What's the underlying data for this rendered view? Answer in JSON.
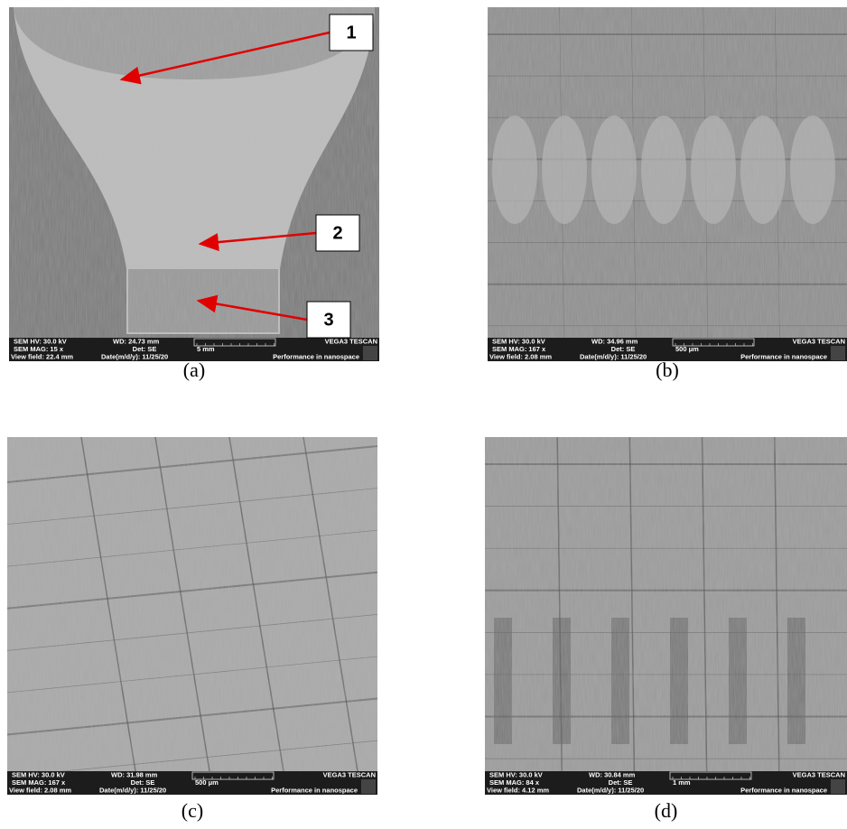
{
  "panels": [
    {
      "label": "(a)",
      "info": {
        "hv": "SEM HV: 30.0 kV",
        "wd": "WD: 24.73 mm",
        "brand": "VEGA3 TESCAN",
        "mag": "SEM MAG: 15 x",
        "det": "Det: SE",
        "scale": "5 mm",
        "view": "View field: 22.4 mm",
        "date": "Date(m/d/y): 11/25/20",
        "slogan": "Performance in nanospace"
      },
      "markers": [
        "1",
        "2",
        "3"
      ]
    },
    {
      "label": "(b)",
      "info": {
        "hv": "SEM HV: 30.0 kV",
        "wd": "WD: 34.96 mm",
        "brand": "VEGA3 TESCAN",
        "mag": "SEM MAG: 167 x",
        "det": "Det: SE",
        "scale": "500 μm",
        "view": "View field: 2.08 mm",
        "date": "Date(m/d/y): 11/25/20",
        "slogan": "Performance in nanospace"
      }
    },
    {
      "label": "(c)",
      "info": {
        "hv": "SEM HV: 30.0 kV",
        "wd": "WD: 31.98 mm",
        "brand": "VEGA3 TESCAN",
        "mag": "SEM MAG: 167 x",
        "det": "Det: SE",
        "scale": "500 μm",
        "view": "View field: 2.08 mm",
        "date": "Date(m/d/y): 11/25/20",
        "slogan": "Performance in nanospace"
      }
    },
    {
      "label": "(d)",
      "info": {
        "hv": "SEM HV: 30.0 kV",
        "wd": "WD: 30.84 mm",
        "brand": "VEGA3 TESCAN",
        "mag": "SEM MAG: 84 x",
        "det": "Det: SE",
        "scale": "1 mm",
        "view": "View field: 4.12 mm",
        "date": "Date(m/d/y): 11/25/20",
        "slogan": "Performance in nanospace"
      }
    }
  ]
}
